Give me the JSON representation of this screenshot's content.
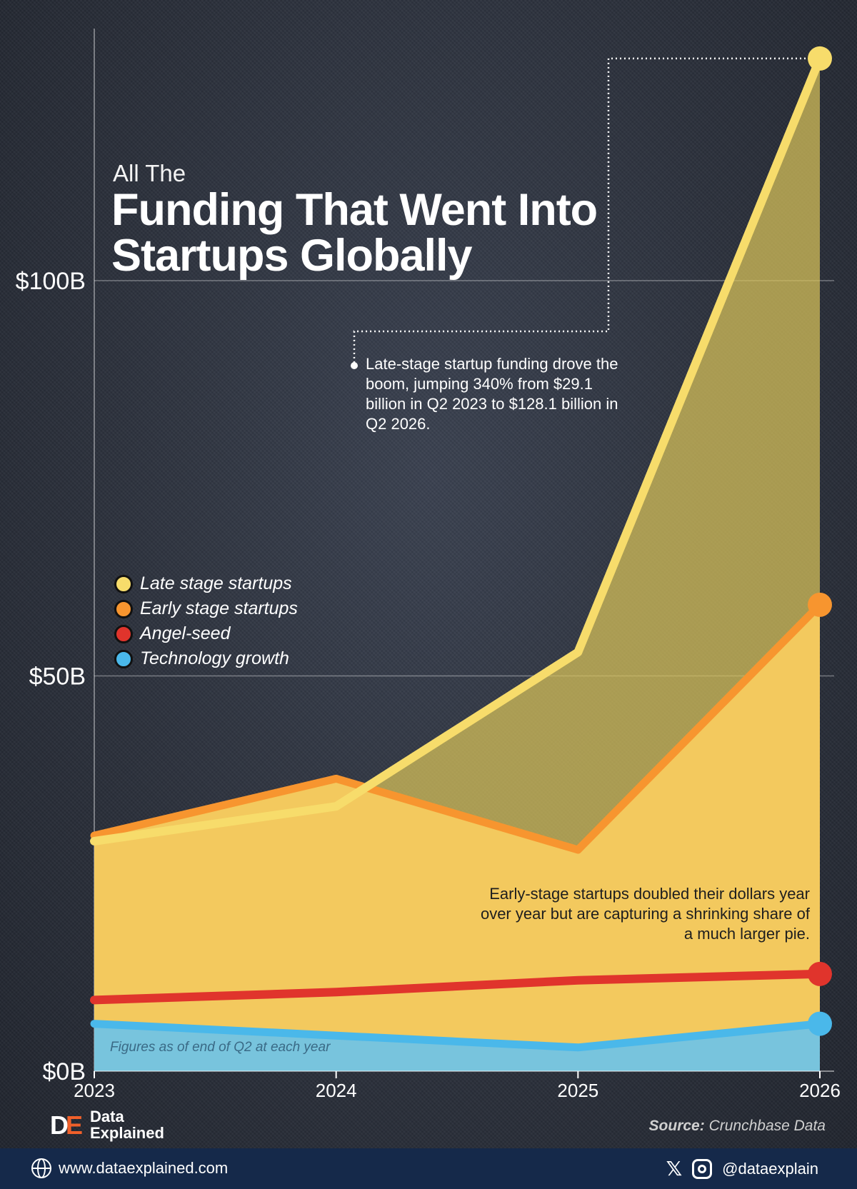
{
  "header": {
    "title_small": "All The",
    "title_main": "Funding That Went Into Startups Globally"
  },
  "annotations": {
    "top": "Late-stage startup funding drove the boom, jumping 340% from $29.1 billion in Q2 2023 to $128.1 billion in Q2 2026.",
    "bottom": "Early-stage startups doubled their dollars year over year but are capturing a shrinking share of a much larger pie.",
    "note": "Figures as of end of Q2 at each year"
  },
  "legend": [
    {
      "label": "Late stage startups",
      "color": "#f7dc6b"
    },
    {
      "label": "Early stage startups",
      "color": "#f7952f"
    },
    {
      "label": "Angel-seed",
      "color": "#e0342c"
    },
    {
      "label": "Technology growth",
      "color": "#4ab8ea"
    }
  ],
  "chart_data": {
    "type": "area",
    "x": [
      "2023",
      "2024",
      "2025",
      "2026"
    ],
    "ylim": [
      0,
      130
    ],
    "y_ticks": [
      {
        "value": 0,
        "label": "$0B"
      },
      {
        "value": 50,
        "label": "$50B"
      },
      {
        "value": 100,
        "label": "$100B"
      }
    ],
    "grid": true,
    "legend_position": "left",
    "series": [
      {
        "name": "Late stage startups",
        "color": "#f7dc6b",
        "values": [
          29.1,
          33.5,
          53,
          128.1
        ]
      },
      {
        "name": "Early stage startups",
        "color": "#f7952f",
        "values": [
          29.8,
          37,
          28,
          59
        ]
      },
      {
        "name": "Angel-seed",
        "color": "#e0342c",
        "values": [
          9,
          10,
          11.5,
          12.3
        ]
      },
      {
        "name": "Technology growth",
        "color": "#4ab8ea",
        "values": [
          6,
          4.5,
          3,
          6
        ]
      }
    ]
  },
  "branding": {
    "logo_d": "D",
    "logo_e": "E",
    "name_line1": "Data",
    "name_line2": "Explained",
    "source_label": "Source:",
    "source_value": "Crunchbase Data"
  },
  "footer": {
    "website": "www.dataexplained.com",
    "handle": "@dataexplain",
    "icon_x": "𝕏"
  },
  "icons": [
    "globe-icon",
    "x-icon",
    "instagram-icon"
  ]
}
